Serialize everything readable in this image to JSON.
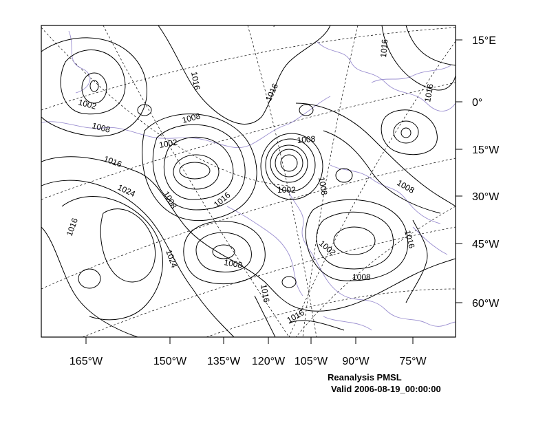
{
  "map": {
    "right_axis_labels": [
      "15°E",
      "0°",
      "15°W",
      "30°W",
      "45°W",
      "60°W"
    ],
    "bottom_axis_labels": [
      "165°W",
      "150°W",
      "135°W",
      "120°W",
      "105°W",
      "90°W",
      "75°W"
    ],
    "contour_labels": [
      "1002",
      "1008",
      "1016",
      "1016",
      "1016",
      "1016",
      "1008",
      "1002",
      "1016",
      "1024",
      "1008",
      "1016",
      "1008",
      "1002",
      "1008",
      "1008",
      "1016",
      "1016",
      "1024",
      "1008",
      "1002",
      "1008",
      "1016",
      "1016",
      "1016"
    ],
    "colors": {
      "contour": "#000000",
      "coastline": "#9b8fd0",
      "grid": "#000000",
      "background": "#ffffff"
    }
  },
  "caption": {
    "line1": "Reanalysis PMSL",
    "line2": "Valid 2006-08-19_00:00:00"
  }
}
